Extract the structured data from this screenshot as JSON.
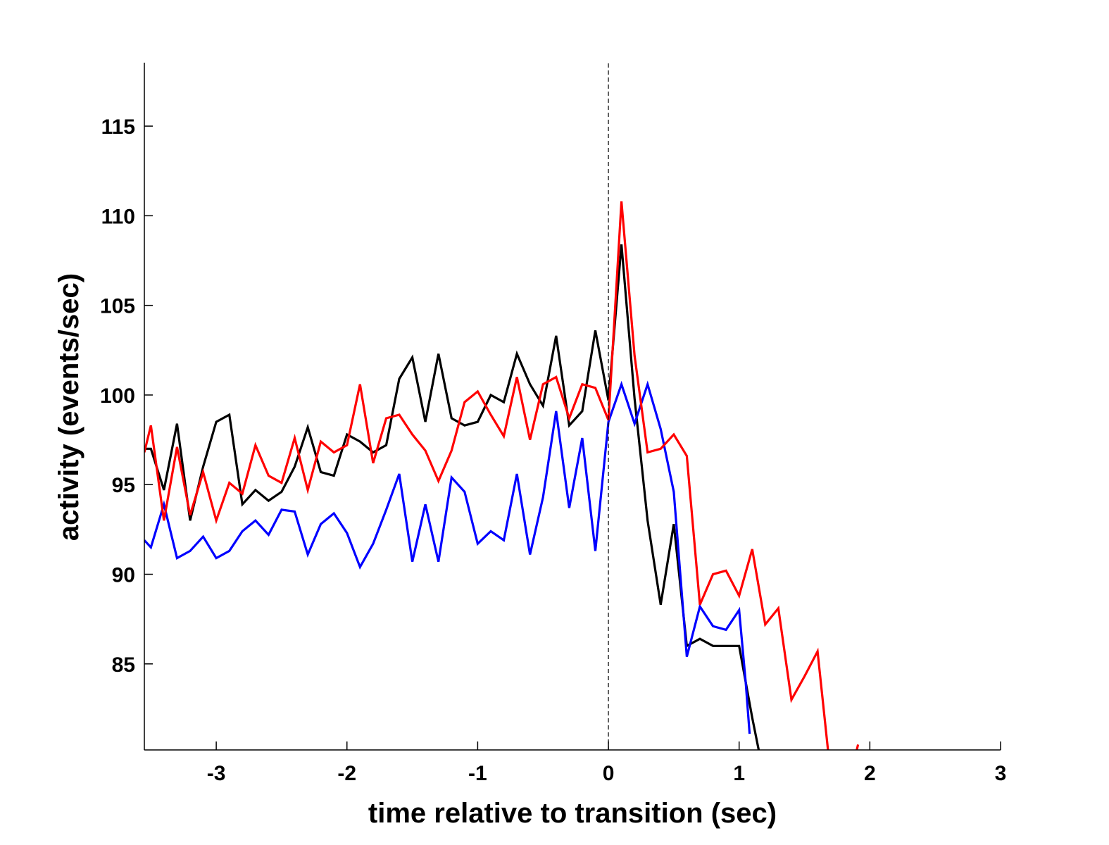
{
  "chart_data": {
    "type": "line",
    "title": "",
    "xlabel": "time relative to transition (sec)",
    "ylabel": "activity (events/sec)",
    "xlim": [
      -3.55,
      3.0
    ],
    "ylim": [
      80.2,
      118.5
    ],
    "xticks": [
      -3,
      -2,
      -1,
      0,
      1,
      2,
      3
    ],
    "xtick_labels": [
      "-3",
      "-2",
      "-1",
      "0",
      "1",
      "2",
      "3"
    ],
    "yticks": [
      85,
      90,
      95,
      100,
      105,
      110,
      115
    ],
    "ytick_labels": [
      "85",
      "90",
      "95",
      "100",
      "105",
      "110",
      "115"
    ],
    "grid": false,
    "legend": "none",
    "reference_line": {
      "x": 0,
      "style": "dashed",
      "color": "#000000"
    },
    "series": [
      {
        "color": "#000000",
        "x": [
          -3.55,
          -3.5,
          -3.4,
          -3.3,
          -3.2,
          -3.1,
          -3.0,
          -2.9,
          -2.8,
          -2.7,
          -2.6,
          -2.5,
          -2.4,
          -2.3,
          -2.2,
          -2.1,
          -2.0,
          -1.9,
          -1.8,
          -1.7,
          -1.6,
          -1.5,
          -1.4,
          -1.3,
          -1.2,
          -1.1,
          -1.0,
          -0.9,
          -0.8,
          -0.7,
          -0.6,
          -0.5,
          -0.4,
          -0.3,
          -0.2,
          -0.1,
          0.0,
          0.1,
          0.2,
          0.3,
          0.4,
          0.5,
          0.6,
          0.7,
          0.8,
          0.9,
          1.0,
          1.05,
          1.1,
          1.15
        ],
        "y": [
          97.0,
          97.0,
          94.7,
          98.4,
          93.0,
          96.0,
          98.5,
          98.9,
          93.9,
          94.7,
          94.1,
          94.6,
          96.0,
          98.2,
          95.7,
          95.5,
          97.8,
          97.4,
          96.8,
          97.2,
          100.9,
          102.1,
          98.5,
          102.3,
          98.7,
          98.3,
          98.5,
          100.0,
          99.6,
          102.3,
          100.6,
          99.4,
          103.3,
          98.3,
          99.1,
          103.6,
          99.7,
          108.4,
          99.8,
          93.0,
          88.3,
          92.8,
          86.0,
          86.4,
          86.0,
          86.0,
          86.0,
          84.0,
          82.0,
          80.2
        ]
      },
      {
        "color": "#0000ff",
        "x": [
          -3.55,
          -3.5,
          -3.4,
          -3.3,
          -3.2,
          -3.1,
          -3.0,
          -2.9,
          -2.8,
          -2.7,
          -2.6,
          -2.5,
          -2.4,
          -2.3,
          -2.2,
          -2.1,
          -2.0,
          -1.9,
          -1.8,
          -1.7,
          -1.6,
          -1.5,
          -1.4,
          -1.3,
          -1.2,
          -1.1,
          -1.0,
          -0.9,
          -0.8,
          -0.7,
          -0.6,
          -0.5,
          -0.4,
          -0.3,
          -0.2,
          -0.1,
          0.0,
          0.1,
          0.2,
          0.3,
          0.4,
          0.5,
          0.6,
          0.7,
          0.8,
          0.9,
          1.0,
          1.05,
          1.08
        ],
        "y": [
          91.9,
          91.5,
          93.9,
          90.9,
          91.3,
          92.1,
          90.9,
          91.3,
          92.4,
          93.0,
          92.2,
          93.6,
          93.5,
          91.1,
          92.8,
          93.4,
          92.3,
          90.4,
          91.7,
          93.6,
          95.6,
          90.7,
          93.9,
          90.7,
          95.4,
          94.6,
          91.7,
          92.4,
          91.9,
          95.6,
          91.1,
          94.3,
          99.1,
          93.7,
          97.6,
          91.3,
          98.5,
          100.6,
          98.4,
          100.6,
          98.1,
          94.6,
          85.4,
          88.2,
          87.1,
          86.9,
          88.0,
          84.0,
          81.1
        ]
      },
      {
        "color": "#ff0000",
        "x": [
          -3.55,
          -3.5,
          -3.4,
          -3.3,
          -3.2,
          -3.1,
          -3.0,
          -2.9,
          -2.8,
          -2.7,
          -2.6,
          -2.5,
          -2.4,
          -2.3,
          -2.2,
          -2.1,
          -2.0,
          -1.9,
          -1.8,
          -1.7,
          -1.6,
          -1.5,
          -1.4,
          -1.3,
          -1.2,
          -1.1,
          -1.0,
          -0.9,
          -0.8,
          -0.7,
          -0.6,
          -0.5,
          -0.4,
          -0.3,
          -0.2,
          -0.1,
          0.0,
          0.1,
          0.2,
          0.3,
          0.4,
          0.5,
          0.6,
          0.7,
          0.8,
          0.9,
          1.0,
          1.1,
          1.2,
          1.3,
          1.4,
          1.5,
          1.6,
          1.68
        ],
        "y": [
          96.8,
          98.3,
          93.0,
          97.1,
          93.3,
          95.7,
          93.0,
          95.1,
          94.5,
          97.2,
          95.5,
          95.1,
          97.6,
          94.7,
          97.4,
          96.8,
          97.2,
          100.6,
          96.2,
          98.7,
          98.9,
          97.8,
          96.9,
          95.2,
          96.9,
          99.6,
          100.2,
          98.9,
          97.7,
          101.0,
          97.5,
          100.6,
          101.0,
          98.7,
          100.6,
          100.4,
          98.6,
          110.8,
          102.2,
          96.8,
          97.0,
          97.8,
          96.6,
          88.3,
          90.0,
          90.2,
          88.8,
          91.4,
          87.2,
          88.1,
          83.0,
          84.3,
          85.7,
          80.2
        ]
      }
    ],
    "extra_marks": [
      {
        "color": "#ff0000",
        "x": [
          1.9,
          1.91
        ],
        "y": [
          80.2,
          80.5
        ]
      }
    ]
  }
}
